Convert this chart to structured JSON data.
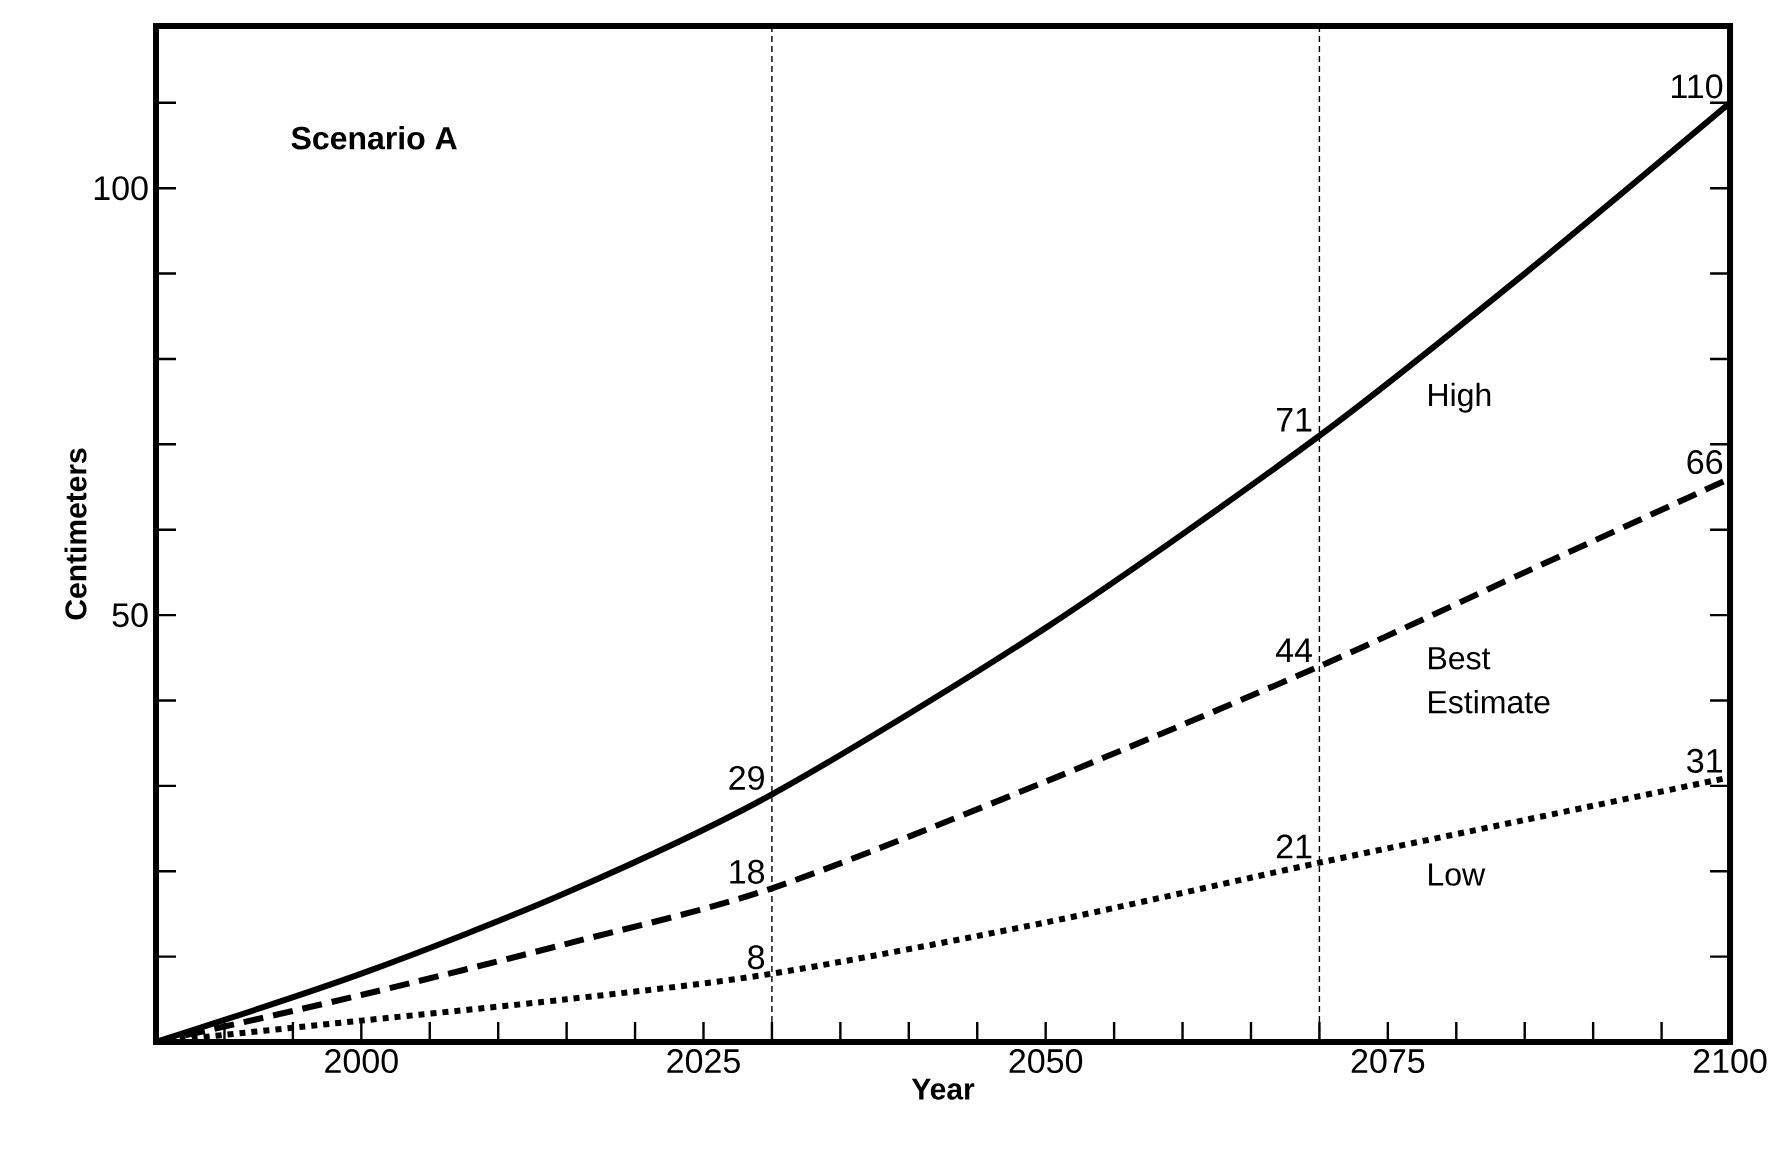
{
  "chart_data": {
    "type": "line",
    "title": "Scenario A",
    "xlabel": "Year",
    "ylabel": "Centimeters",
    "x": [
      1985,
      2000,
      2015,
      2030,
      2050,
      2070,
      2085,
      2100
    ],
    "series": [
      {
        "name": "High",
        "color": "#000000",
        "line_style": "solid",
        "values": [
          0,
          8,
          17.5,
          29,
          48.5,
          71,
          90,
          110
        ],
        "value_labels": [
          null,
          null,
          null,
          "29",
          null,
          "71",
          null,
          "110"
        ]
      },
      {
        "name": "Best Estimate",
        "color": "#000000",
        "line_style": "dashed",
        "values": [
          0,
          5.5,
          11.5,
          18,
          30.5,
          44,
          55,
          66
        ],
        "value_labels": [
          null,
          null,
          null,
          "18",
          null,
          "44",
          null,
          "66"
        ]
      },
      {
        "name": "Low",
        "color": "#000000",
        "line_style": "dotted",
        "values": [
          0,
          2.5,
          5,
          8,
          14,
          21,
          26,
          31
        ],
        "value_labels": [
          null,
          null,
          null,
          "8",
          null,
          "21",
          null,
          "31"
        ]
      }
    ],
    "xlim": [
      1985,
      2100
    ],
    "ylim": [
      0,
      119
    ],
    "xticks": [
      {
        "value": 1990,
        "label": null
      },
      {
        "value": 1995,
        "label": null
      },
      2000,
      {
        "value": 2005,
        "label": null
      },
      {
        "value": 2010,
        "label": null
      },
      {
        "value": 2015,
        "label": null
      },
      {
        "value": 2020,
        "label": null
      },
      2025,
      {
        "value": 2030,
        "label": null
      },
      {
        "value": 2035,
        "label": null
      },
      {
        "value": 2040,
        "label": null
      },
      {
        "value": 2045,
        "label": null
      },
      2050,
      {
        "value": 2055,
        "label": null
      },
      {
        "value": 2060,
        "label": null
      },
      {
        "value": 2065,
        "label": null
      },
      {
        "value": 2070,
        "label": null
      },
      2075,
      {
        "value": 2080,
        "label": null
      },
      {
        "value": 2085,
        "label": null
      },
      {
        "value": 2090,
        "label": null
      },
      {
        "value": 2095,
        "label": null
      },
      2100
    ],
    "yticks": [
      {
        "value": 10,
        "label": null
      },
      {
        "value": 20,
        "label": null
      },
      {
        "value": 30,
        "label": null
      },
      {
        "value": 40,
        "label": null
      },
      50,
      {
        "value": 60,
        "label": null
      },
      {
        "value": 70,
        "label": null
      },
      {
        "value": 80,
        "label": null
      },
      {
        "value": 90,
        "label": null
      },
      100,
      {
        "value": 110,
        "label": null
      }
    ],
    "ref_lines": [
      {
        "axis": "x",
        "value": 2030,
        "line_style": "dashed"
      },
      {
        "axis": "x",
        "value": 2070,
        "line_style": "dashed"
      }
    ],
    "grid": false,
    "marker": "none"
  }
}
